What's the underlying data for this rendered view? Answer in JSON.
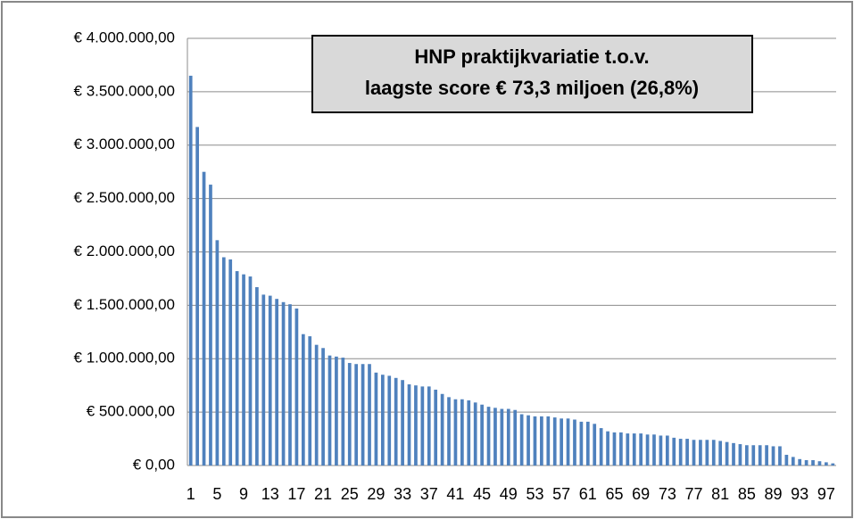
{
  "chart_data": {
    "type": "bar",
    "title": [
      "HNP praktijkvariatie t.o.v.",
      "laagste score € 73,3 miljoen (26,8%)"
    ],
    "categories": [
      "1",
      null,
      null,
      null,
      "5",
      null,
      null,
      null,
      "9",
      null,
      null,
      null,
      "13",
      null,
      null,
      null,
      "17",
      null,
      null,
      null,
      "21",
      null,
      null,
      null,
      "25",
      null,
      null,
      null,
      "29",
      null,
      null,
      null,
      "33",
      null,
      null,
      null,
      "37",
      null,
      null,
      null,
      "41",
      null,
      null,
      null,
      "45",
      null,
      null,
      null,
      "49",
      null,
      null,
      null,
      "53",
      null,
      null,
      null,
      "57",
      null,
      null,
      null,
      "61",
      null,
      null,
      null,
      "65",
      null,
      null,
      null,
      "69",
      null,
      null,
      null,
      "73",
      null,
      null,
      null,
      "77",
      null,
      null,
      null,
      "81",
      null,
      null,
      null,
      "85",
      null,
      null,
      null,
      "89",
      null,
      null,
      null,
      "93",
      null,
      null,
      null,
      "97",
      null
    ],
    "values": [
      3650000,
      3170000,
      2750000,
      2630000,
      2110000,
      1950000,
      1930000,
      1820000,
      1790000,
      1770000,
      1670000,
      1600000,
      1590000,
      1560000,
      1530000,
      1510000,
      1470000,
      1230000,
      1210000,
      1130000,
      1100000,
      1030000,
      1020000,
      1010000,
      960000,
      950000,
      950000,
      950000,
      870000,
      850000,
      840000,
      820000,
      800000,
      760000,
      750000,
      740000,
      740000,
      710000,
      670000,
      640000,
      620000,
      620000,
      610000,
      590000,
      570000,
      550000,
      540000,
      530000,
      530000,
      520000,
      480000,
      470000,
      460000,
      460000,
      460000,
      450000,
      440000,
      440000,
      430000,
      410000,
      410000,
      390000,
      350000,
      320000,
      310000,
      310000,
      300000,
      300000,
      300000,
      290000,
      290000,
      280000,
      280000,
      260000,
      250000,
      250000,
      240000,
      240000,
      240000,
      240000,
      230000,
      220000,
      210000,
      200000,
      190000,
      190000,
      190000,
      190000,
      180000,
      180000,
      100000,
      80000,
      60000,
      50000,
      50000,
      40000,
      30000,
      20000
    ],
    "color": "#4f81bd",
    "ylim": [
      0,
      4000000
    ],
    "yticks": [
      {
        "value": 0,
        "label": "€ 0,00"
      },
      {
        "value": 500000,
        "label": "€ 500.000,00"
      },
      {
        "value": 1000000,
        "label": "€ 1.000.000,00"
      },
      {
        "value": 1500000,
        "label": "€ 1.500.000,00"
      },
      {
        "value": 2000000,
        "label": "€ 2.000.000,00"
      },
      {
        "value": 2500000,
        "label": "€ 2.500.000,00"
      },
      {
        "value": 3000000,
        "label": "€ 3.000.000,00"
      },
      {
        "value": 3500000,
        "label": "€ 3.500.000,00"
      },
      {
        "value": 4000000,
        "label": "€ 4.000.000,00"
      }
    ],
    "grid": true
  }
}
